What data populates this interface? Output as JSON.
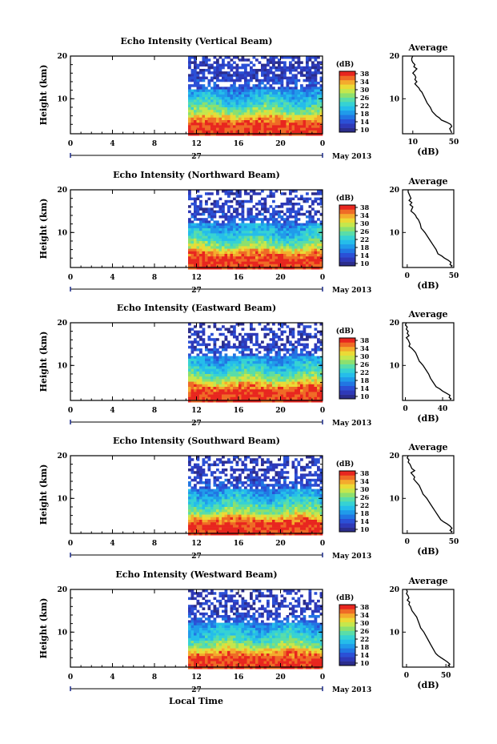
{
  "figure": {
    "xlabel": "Local Time",
    "date_label": "May 2013",
    "day_label": "27",
    "colorbar_label": "(dB)",
    "colorbar_ticks": [
      "10",
      "14",
      "18",
      "22",
      "26",
      "30",
      "34",
      "38"
    ],
    "avg_title": "Average",
    "avg_xlabel": "(dB)"
  },
  "chart_data": [
    {
      "type": "heatmap",
      "title": "Echo Intensity (Vertical Beam)",
      "ylabel": "Height (km)",
      "x_ticks": [
        "0",
        "4",
        "8",
        "12",
        "16",
        "20",
        "0"
      ],
      "x_range_hours": [
        0,
        24
      ],
      "data_start_hour": 11.2,
      "y_ticks": [
        "20",
        "10"
      ],
      "ylim_km": [
        1.8,
        20
      ],
      "color_scale_db": [
        10,
        38
      ],
      "profile": {
        "type": "line",
        "title": "Average",
        "xlim": [
          0,
          50
        ],
        "x_ticks": [
          "10",
          "50"
        ],
        "x": [
          10,
          9,
          9,
          10,
          12,
          11,
          14,
          10,
          12,
          13,
          12,
          14,
          12,
          14,
          16,
          17,
          19,
          20,
          22,
          24,
          27,
          29,
          33,
          36,
          38,
          43,
          47,
          48,
          46,
          47,
          48
        ],
        "y": [
          20,
          19.5,
          19,
          18.5,
          18,
          17.5,
          17,
          16,
          15.5,
          15,
          14.5,
          14,
          13.5,
          13,
          12.5,
          12,
          11.5,
          11,
          10,
          9,
          8,
          7,
          6,
          5.5,
          5,
          4.5,
          4,
          3.5,
          3,
          2.5,
          2
        ]
      }
    },
    {
      "type": "heatmap",
      "title": "Echo Intensity (Northward Beam)",
      "ylabel": "Height (km)",
      "x_ticks": [
        "0",
        "4",
        "8",
        "12",
        "16",
        "20",
        "0"
      ],
      "x_range_hours": [
        0,
        24
      ],
      "data_start_hour": 11.2,
      "y_ticks": [
        "20",
        "10"
      ],
      "ylim_km": [
        1.8,
        20
      ],
      "color_scale_db": [
        10,
        38
      ],
      "profile": {
        "type": "line",
        "title": "Average",
        "xlim": [
          -5,
          50
        ],
        "x_ticks": [
          "0",
          "50"
        ],
        "x": [
          1,
          1,
          2,
          3,
          4,
          2,
          5,
          3,
          6,
          4,
          7,
          9,
          10,
          12,
          14,
          15,
          17,
          19,
          22,
          25,
          28,
          31,
          33,
          37,
          40,
          44,
          47,
          46,
          48,
          47
        ],
        "y": [
          20,
          19.5,
          19,
          18.5,
          18,
          17.5,
          17,
          16.5,
          16,
          15,
          14.5,
          14,
          13.5,
          13,
          12,
          11,
          10.5,
          10,
          9,
          8,
          7,
          6,
          5,
          4.5,
          4,
          3.5,
          3,
          2.5,
          2.2,
          2
        ]
      }
    },
    {
      "type": "heatmap",
      "title": "Echo Intensity (Eastward Beam)",
      "ylabel": "Height (km)",
      "x_ticks": [
        "0",
        "4",
        "8",
        "12",
        "16",
        "20",
        "0"
      ],
      "x_range_hours": [
        0,
        24
      ],
      "data_start_hour": 11.2,
      "y_ticks": [
        "20",
        "10"
      ],
      "ylim_km": [
        1.8,
        20
      ],
      "color_scale_db": [
        10,
        38
      ],
      "profile": {
        "type": "line",
        "title": "Average",
        "xlim": [
          -3,
          52
        ],
        "x_ticks": [
          "0",
          "40"
        ],
        "x": [
          1,
          0,
          2,
          1,
          3,
          2,
          4,
          1,
          3,
          5,
          4,
          7,
          9,
          11,
          13,
          15,
          17,
          19,
          22,
          25,
          27,
          30,
          33,
          37,
          40,
          44,
          48,
          47,
          49,
          48
        ],
        "y": [
          20,
          19.5,
          19,
          18.5,
          18,
          17.5,
          17,
          16.5,
          16,
          15,
          14.5,
          14,
          13.5,
          13,
          12,
          11,
          10.5,
          10,
          9,
          8,
          7,
          6,
          5,
          4.5,
          4,
          3.5,
          3,
          2.5,
          2.2,
          2
        ]
      }
    },
    {
      "type": "heatmap",
      "title": "Echo Intensity (Southward Beam)",
      "ylabel": "Height (km)",
      "x_ticks": [
        "0",
        "4",
        "8",
        "12",
        "16",
        "20",
        "0"
      ],
      "x_range_hours": [
        0,
        24
      ],
      "data_start_hour": 11.2,
      "y_ticks": [
        "20",
        "10"
      ],
      "ylim_km": [
        1.8,
        20
      ],
      "color_scale_db": [
        10,
        38
      ],
      "profile": {
        "type": "line",
        "title": "Average",
        "xlim": [
          -5,
          50
        ],
        "x_ticks": [
          "0",
          "50"
        ],
        "x": [
          1,
          0,
          2,
          1,
          3,
          5,
          8,
          4,
          6,
          8,
          7,
          9,
          11,
          13,
          15,
          17,
          19,
          21,
          24,
          27,
          30,
          33,
          36,
          39,
          43,
          46,
          48,
          46,
          48,
          47
        ],
        "y": [
          20,
          19.5,
          19,
          18.5,
          18,
          17,
          16.5,
          16,
          15.5,
          15,
          14.5,
          14,
          13.5,
          13,
          12,
          11,
          10.5,
          10,
          9,
          8,
          7,
          6,
          5,
          4.5,
          4,
          3.5,
          3,
          2.5,
          2.2,
          2
        ]
      }
    },
    {
      "type": "heatmap",
      "title": "Echo Intensity (Westward Beam)",
      "ylabel": "Height (km)",
      "x_ticks": [
        "0",
        "4",
        "8",
        "12",
        "16",
        "20",
        "0"
      ],
      "x_range_hours": [
        0,
        24
      ],
      "data_start_hour": 11.2,
      "y_ticks": [
        "20",
        "10"
      ],
      "ylim_km": [
        1.8,
        20
      ],
      "color_scale_db": [
        10,
        38
      ],
      "profile": {
        "type": "line",
        "title": "Average",
        "xlim": [
          -5,
          60
        ],
        "x_ticks": [
          "0",
          "50"
        ],
        "x": [
          0,
          1,
          0,
          2,
          3,
          1,
          4,
          3,
          5,
          7,
          9,
          11,
          13,
          14,
          16,
          18,
          20,
          22,
          25,
          28,
          31,
          34,
          37,
          40,
          44,
          48,
          52,
          55,
          53,
          55
        ],
        "y": [
          20,
          19.5,
          19,
          18.5,
          18,
          17.5,
          17,
          16.5,
          16,
          15,
          14.5,
          14,
          13.5,
          13,
          12,
          11,
          10.5,
          10,
          9,
          8,
          7,
          6,
          5,
          4.5,
          4,
          3.5,
          3,
          2.5,
          2.2,
          2
        ]
      }
    }
  ]
}
